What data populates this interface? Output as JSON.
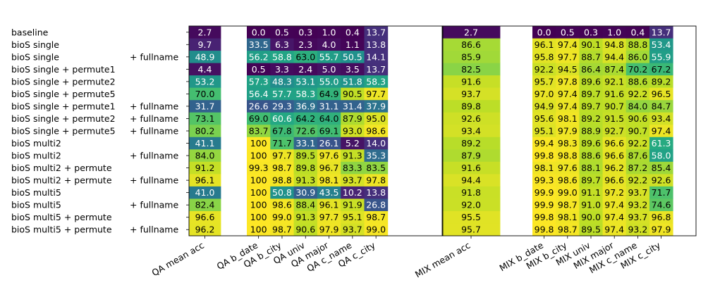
{
  "chart_data": {
    "type": "heatmap",
    "colormap": "viridis",
    "value_range": [
      0,
      100
    ],
    "rows": [
      {
        "a": "baseline",
        "b": ""
      },
      {
        "a": "bioS single",
        "b": ""
      },
      {
        "a": "bioS single",
        "b": "+ fullname"
      },
      {
        "a": "bioS single + permute1",
        "b": ""
      },
      {
        "a": "bioS single + permute2",
        "b": ""
      },
      {
        "a": "bioS single + permute5",
        "b": ""
      },
      {
        "a": "bioS single + permute1",
        "b": "+ fullname"
      },
      {
        "a": "bioS single + permute2",
        "b": "+ fullname"
      },
      {
        "a": "bioS single + permute5",
        "b": "+ fullname"
      },
      {
        "a": "bioS multi2",
        "b": ""
      },
      {
        "a": "bioS multi2",
        "b": "+ fullname"
      },
      {
        "a": "bioS multi2 + permute",
        "b": ""
      },
      {
        "a": "bioS multi2 + permute",
        "b": "+ fullname"
      },
      {
        "a": "bioS multi5",
        "b": ""
      },
      {
        "a": "bioS multi5",
        "b": "+ fullname"
      },
      {
        "a": "bioS multi5 + permute",
        "b": ""
      },
      {
        "a": "bioS multi5 + permute",
        "b": "+ fullname"
      }
    ],
    "panels": [
      {
        "columns": [
          "QA mean acc"
        ]
      },
      {
        "columns": [
          "QA b_date",
          "QA b_city",
          "QA univ",
          "QA major",
          "QA c_name",
          "QA c_city"
        ]
      },
      {
        "columns": [
          "MIX mean acc"
        ]
      },
      {
        "columns": [
          "MIX b_date",
          "MIX b_city",
          "MIX univ",
          "MIX major",
          "MIX c_name",
          "MIX c_city"
        ]
      }
    ],
    "values": [
      [
        "2.7",
        "0.0",
        "0.5",
        "0.3",
        "1.0",
        "0.4",
        "13.7",
        "2.7",
        "0.0",
        "0.5",
        "0.3",
        "1.0",
        "0.4",
        "13.7"
      ],
      [
        "9.7",
        "33.5",
        "6.3",
        "2.3",
        "4.0",
        "1.1",
        "13.8",
        "86.6",
        "96.1",
        "97.4",
        "90.1",
        "94.8",
        "88.8",
        "53.4"
      ],
      [
        "48.9",
        "56.2",
        "58.8",
        "63.0",
        "55.7",
        "50.5",
        "14.1",
        "85.9",
        "95.8",
        "97.7",
        "88.7",
        "94.4",
        "86.0",
        "55.9"
      ],
      [
        "4.4",
        "0.5",
        "3.3",
        "2.4",
        "5.0",
        "3.5",
        "13.7",
        "82.5",
        "92.2",
        "94.5",
        "86.4",
        "87.4",
        "70.2",
        "67.2"
      ],
      [
        "53.2",
        "57.3",
        "48.3",
        "53.1",
        "55.0",
        "51.8",
        "58.3",
        "91.6",
        "95.7",
        "97.8",
        "89.6",
        "92.1",
        "88.6",
        "89.2"
      ],
      [
        "70.0",
        "56.4",
        "57.7",
        "58.3",
        "64.9",
        "90.5",
        "97.7",
        "93.7",
        "97.0",
        "97.4",
        "89.7",
        "91.6",
        "92.2",
        "96.5"
      ],
      [
        "31.7",
        "26.6",
        "29.3",
        "36.9",
        "31.1",
        "31.4",
        "37.9",
        "89.8",
        "94.9",
        "97.4",
        "89.7",
        "90.7",
        "84.0",
        "84.7"
      ],
      [
        "73.1",
        "69.0",
        "60.6",
        "64.2",
        "64.0",
        "87.9",
        "95.0",
        "92.6",
        "95.6",
        "98.1",
        "89.2",
        "91.5",
        "90.6",
        "93.4"
      ],
      [
        "80.2",
        "83.7",
        "67.8",
        "72.6",
        "69.1",
        "93.0",
        "98.6",
        "93.4",
        "95.1",
        "97.9",
        "88.9",
        "92.7",
        "90.7",
        "97.4"
      ],
      [
        "41.1",
        "100",
        "71.7",
        "33.1",
        "26.1",
        "5.2",
        "14.0",
        "89.2",
        "99.4",
        "98.3",
        "89.6",
        "96.6",
        "92.2",
        "61.3"
      ],
      [
        "84.0",
        "100",
        "97.7",
        "89.5",
        "97.6",
        "91.3",
        "35.3",
        "87.9",
        "99.8",
        "98.8",
        "88.6",
        "96.6",
        "87.6",
        "58.0"
      ],
      [
        "91.2",
        "99.3",
        "98.7",
        "89.8",
        "96.7",
        "83.3",
        "83.5",
        "91.6",
        "98.1",
        "97.6",
        "88.1",
        "96.2",
        "87.2",
        "85.4"
      ],
      [
        "96.1",
        "100",
        "98.8",
        "91.3",
        "98.1",
        "93.7",
        "97.8",
        "94.4",
        "99.3",
        "98.6",
        "89.7",
        "96.6",
        "92.2",
        "92.6"
      ],
      [
        "41.0",
        "100",
        "50.8",
        "30.9",
        "43.5",
        "10.2",
        "13.8",
        "91.8",
        "99.9",
        "99.0",
        "91.1",
        "97.2",
        "93.7",
        "71.7"
      ],
      [
        "82.4",
        "100",
        "98.6",
        "88.4",
        "96.1",
        "91.9",
        "26.8",
        "92.0",
        "99.9",
        "98.7",
        "91.0",
        "97.4",
        "93.2",
        "74.6"
      ],
      [
        "96.6",
        "100",
        "99.0",
        "91.3",
        "97.7",
        "95.1",
        "98.7",
        "95.5",
        "99.8",
        "98.1",
        "90.0",
        "97.4",
        "93.7",
        "96.8"
      ],
      [
        "96.2",
        "100",
        "98.7",
        "90.6",
        "97.9",
        "93.7",
        "99.0",
        "95.7",
        "99.8",
        "98.7",
        "89.5",
        "97.4",
        "93.2",
        "97.9"
      ]
    ]
  }
}
